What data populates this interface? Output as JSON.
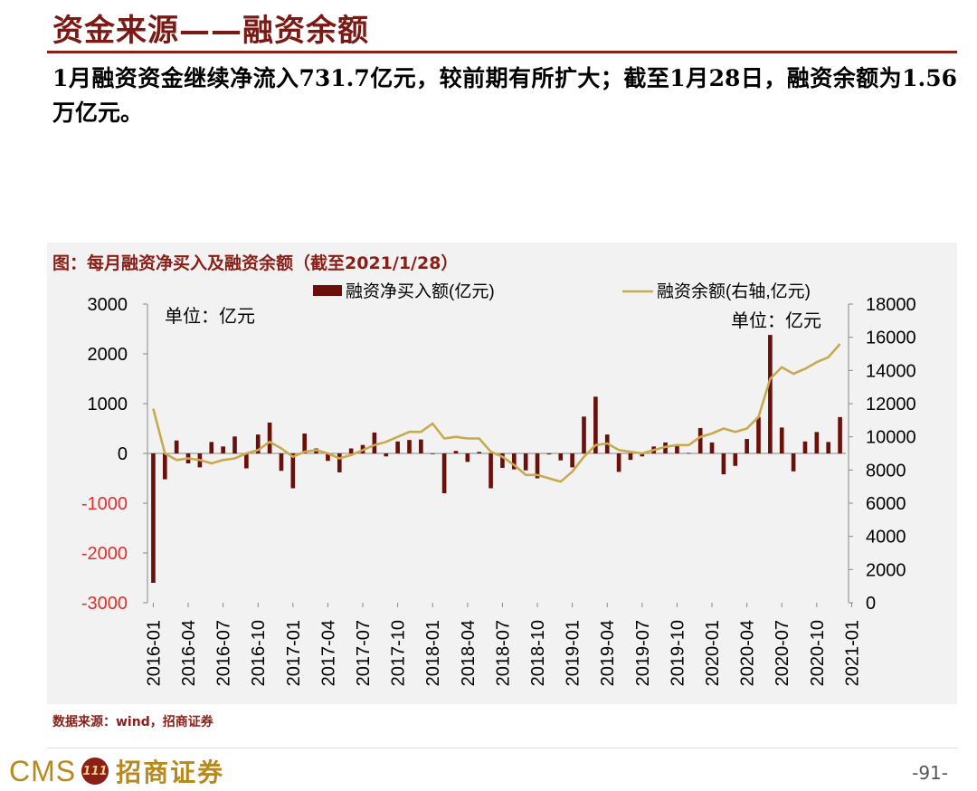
{
  "page": {
    "title": "资金来源——融资余额",
    "summary": "1月融资资金继续净流入731.7亿元，较前期有所扩大；截至1月28日，融资余额为1.56万亿元。",
    "figure_title": "图：每月融资净买入及融资余额（截至2021/1/28）",
    "source": "数据来源：wind，招商证券",
    "page_number": "-91-",
    "logo_text": "CMS",
    "logo_badge": "111",
    "logo_cn": "招商证券"
  },
  "colors": {
    "bar": "#6b0f0a",
    "line": "#c9a94e",
    "title": "#8b1e16",
    "negative_tick": "#e0302a"
  },
  "chart_data": {
    "type": "bar",
    "legend": {
      "bar_label": "融资净买入额(亿元)",
      "line_label": "融资余额(右轴,亿元)",
      "placement": "top"
    },
    "unit_left": "单位：亿元",
    "unit_right": "单位：亿元",
    "y_left": {
      "lim": [
        -3000,
        3000
      ],
      "ticks": [
        "3000",
        "2000",
        "1000",
        "0",
        "-1000",
        "-2000",
        "-3000"
      ]
    },
    "y_right": {
      "lim": [
        0,
        18000
      ],
      "ticks": [
        "18000",
        "16000",
        "14000",
        "12000",
        "10000",
        "8000",
        "6000",
        "4000",
        "2000",
        "0"
      ]
    },
    "x_tick_labels": [
      "2016-01",
      "2016-04",
      "2016-07",
      "2016-10",
      "2017-01",
      "2017-04",
      "2017-07",
      "2017-10",
      "2018-01",
      "2018-04",
      "2018-07",
      "2018-10",
      "2019-01",
      "2019-04",
      "2019-07",
      "2019-10",
      "2020-01",
      "2020-04",
      "2020-07",
      "2020-10",
      "2021-01"
    ],
    "series": [
      {
        "name": "融资净买入额(亿元)",
        "type": "bar",
        "axis": "left",
        "values": [
          -2600,
          -520,
          260,
          -200,
          -280,
          230,
          140,
          340,
          -300,
          380,
          620,
          -350,
          -700,
          400,
          100,
          -150,
          -380,
          100,
          170,
          420,
          -60,
          240,
          270,
          280,
          -10,
          -800,
          50,
          -170,
          30,
          -700,
          -290,
          -320,
          -340,
          -500,
          -20,
          -140,
          -280,
          740,
          1140,
          380,
          -370,
          -130,
          -60,
          140,
          220,
          150,
          10,
          510,
          220,
          -420,
          -250,
          290,
          730,
          2380,
          520,
          -360,
          240,
          430,
          230,
          730
        ]
      },
      {
        "name": "融资余额(右轴,亿元)",
        "type": "line",
        "axis": "right",
        "values": [
          11700,
          9000,
          8600,
          8700,
          8600,
          8400,
          8600,
          8700,
          9000,
          9200,
          9700,
          9300,
          8800,
          9100,
          9200,
          9000,
          8700,
          8900,
          9200,
          9500,
          9700,
          10000,
          10300,
          10300,
          10800,
          9900,
          10000,
          9900,
          9900,
          9100,
          8800,
          8300,
          7700,
          7700,
          7500,
          7300,
          7900,
          8800,
          9500,
          9600,
          9200,
          9100,
          9000,
          9200,
          9400,
          9500,
          9500,
          10000,
          10200,
          10500,
          10300,
          10500,
          11200,
          13500,
          14200,
          13800,
          14100,
          14500,
          14800,
          15600
        ]
      }
    ]
  }
}
